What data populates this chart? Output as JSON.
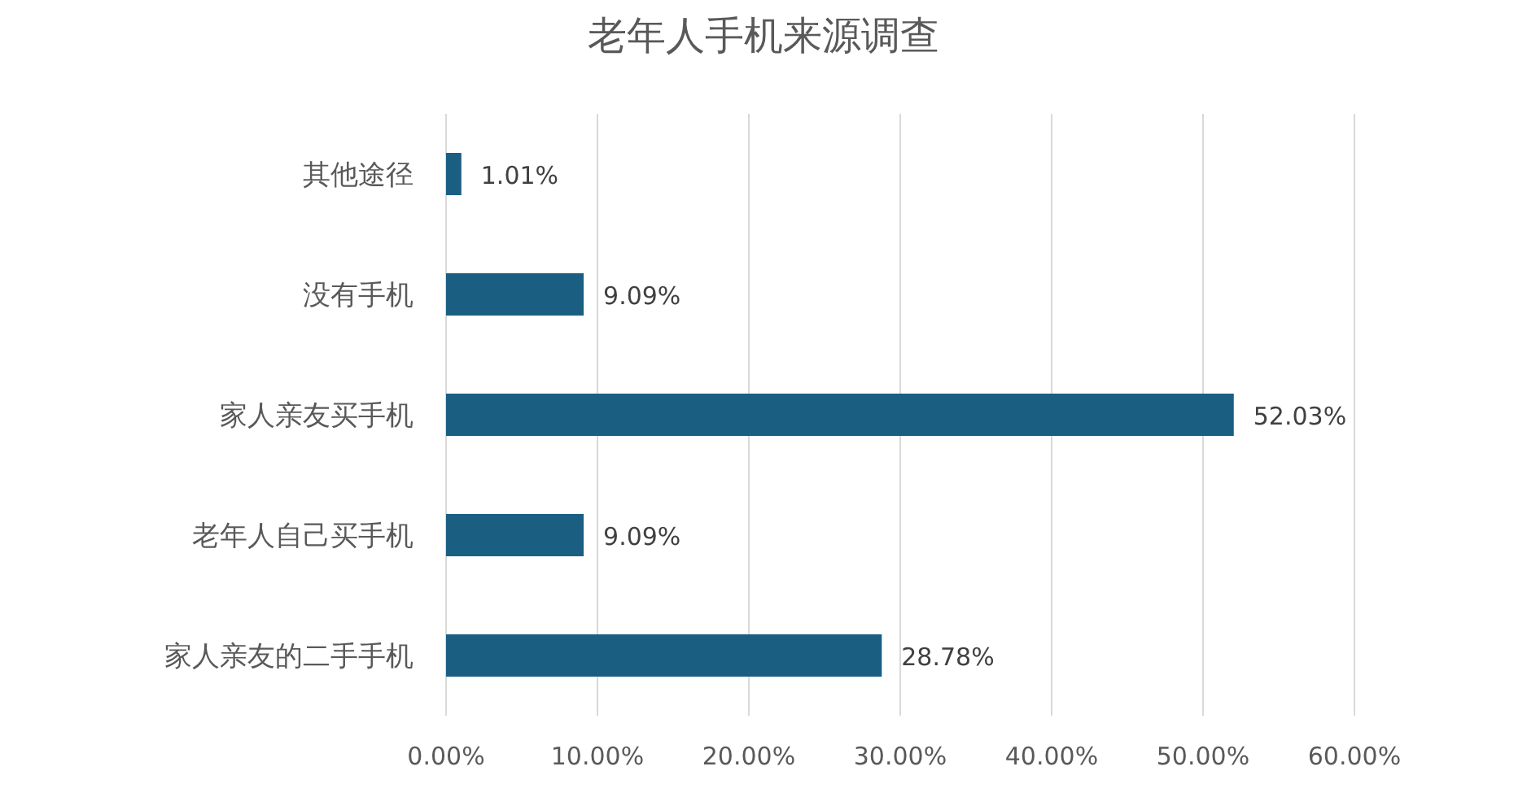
{
  "chart_data": {
    "type": "bar",
    "orientation": "horizontal",
    "title": "老年人手机来源调查",
    "categories": [
      "其他途径",
      "没有手机",
      "家人亲友买手机",
      "老年人自己买手机",
      "家人亲友的二手手机"
    ],
    "values": [
      1.01,
      9.09,
      52.03,
      9.09,
      28.78
    ],
    "value_labels": [
      "1.01%",
      "9.09%",
      "52.03%",
      "9.09%",
      "28.78%"
    ],
    "color": "#1a5e82",
    "xlim": [
      0,
      60
    ],
    "xticks": [
      {
        "value": 0,
        "label": "0.00%"
      },
      {
        "value": 10,
        "label": "10.00%"
      },
      {
        "value": 20,
        "label": "20.00%"
      },
      {
        "value": 30,
        "label": "30.00%"
      },
      {
        "value": 40,
        "label": "40.00%"
      },
      {
        "value": 50,
        "label": "50.00%"
      },
      {
        "value": 60,
        "label": "60.00%"
      }
    ],
    "grid": "x"
  }
}
